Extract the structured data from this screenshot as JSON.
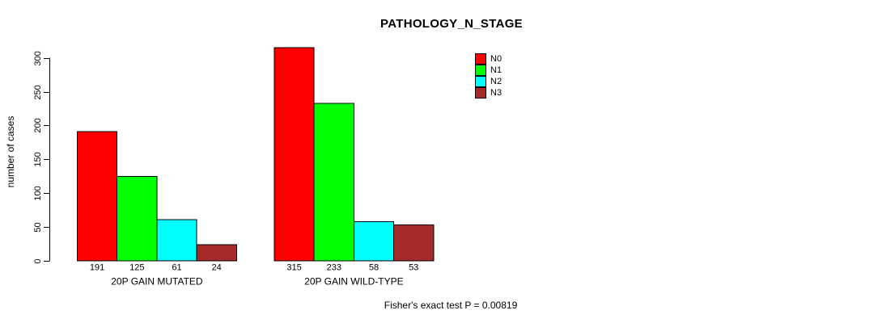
{
  "chart_data": {
    "type": "bar",
    "title": "PATHOLOGY_N_STAGE",
    "ylabel": "number of cases",
    "xlabel": "",
    "ylim": [
      0,
      300
    ],
    "yticks": [
      0,
      50,
      100,
      150,
      200,
      250,
      300
    ],
    "grid": false,
    "legend_position": "top-right",
    "categories": [
      "20P GAIN MUTATED",
      "20P GAIN WILD-TYPE"
    ],
    "series": [
      {
        "name": "N0",
        "color": "#ff0000",
        "values": [
          191,
          315
        ]
      },
      {
        "name": "N1",
        "color": "#00ff00",
        "values": [
          125,
          233
        ]
      },
      {
        "name": "N2",
        "color": "#00ffff",
        "values": [
          61,
          58
        ]
      },
      {
        "name": "N3",
        "color": "#a52a2a",
        "values": [
          24,
          53
        ]
      }
    ],
    "bar_value_labels": [
      [
        "191",
        "125",
        "61",
        "24"
      ],
      [
        "315",
        "233",
        "58",
        "53"
      ]
    ],
    "annotation": "Fisher's exact test P = 0.00819"
  }
}
